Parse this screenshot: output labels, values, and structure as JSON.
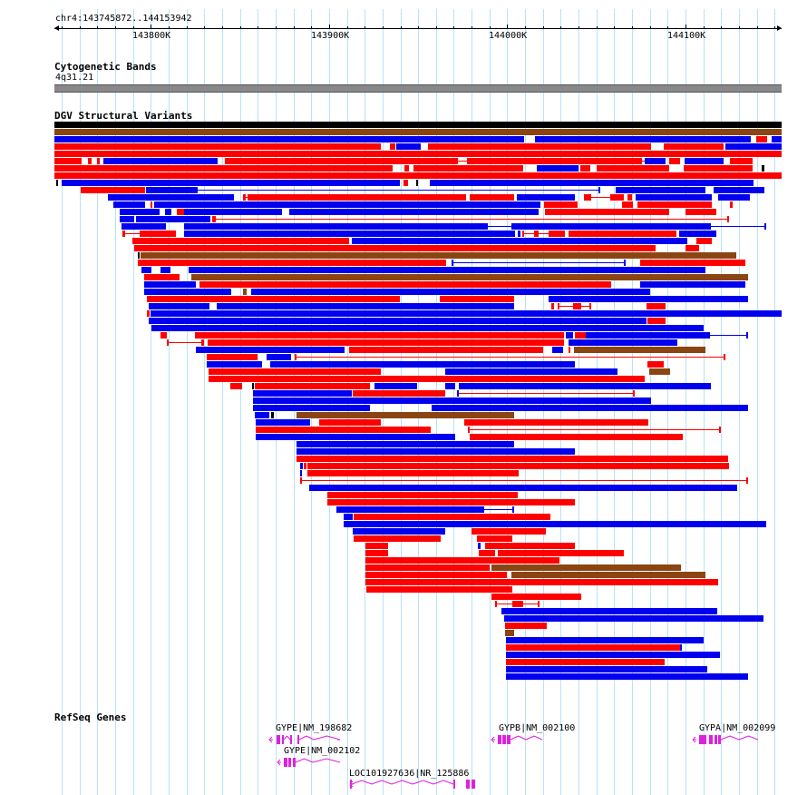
{
  "ruler": {
    "location": "chr4:143745872..144153942",
    "ticks": [
      {
        "label": "143800K",
        "pos": 143800000
      },
      {
        "label": "143900K",
        "pos": 143900000
      },
      {
        "label": "144000K",
        "pos": 144000000
      },
      {
        "label": "144100K",
        "pos": 144100000
      }
    ],
    "start": 143745872,
    "end": 144153942
  },
  "cytobands": {
    "title": "Cytogenetic Bands",
    "band": "4q31.21"
  },
  "dgv": {
    "title": "DGV Structural Variants",
    "colors": {
      "gain": "#ff0000",
      "loss": "#0000ee",
      "both": "#8b4513",
      "other": "#000000"
    }
  },
  "refseq": {
    "title": "RefSeq Genes",
    "color": "#e020e0",
    "genes": [
      {
        "name": "GYPE|NM_198682"
      },
      {
        "name": "GYPE|NM_002102"
      },
      {
        "name": "LOC101927636|NR_125886"
      },
      {
        "name": "GYPB|NM_002100"
      },
      {
        "name": "GYPA|NM_002099"
      }
    ]
  }
}
